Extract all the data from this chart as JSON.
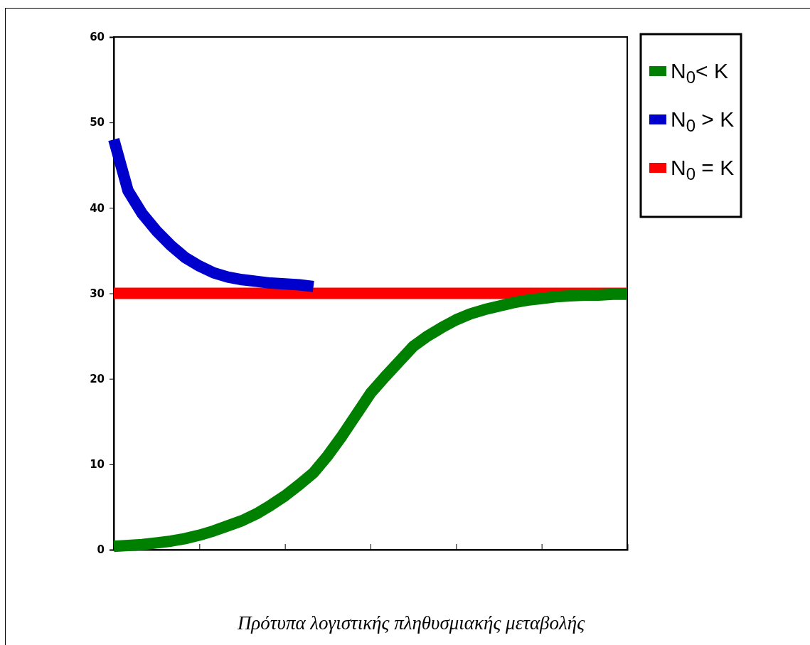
{
  "chart_data": {
    "type": "line",
    "categories": [
      null,
      null,
      null,
      null,
      null,
      null,
      null,
      null,
      null,
      null,
      null,
      null,
      null,
      null,
      null,
      null,
      null,
      null,
      null,
      null,
      null,
      null,
      null,
      null,
      null,
      null,
      null,
      null,
      null,
      null,
      null,
      null,
      null,
      null,
      null,
      null,
      null
    ],
    "series": [
      {
        "name": "N$_{0}$< K",
        "color": "#008000",
        "values": [
          0.4,
          0.5,
          0.6,
          0.8,
          1.0,
          1.3,
          1.7,
          2.2,
          2.8,
          3.4,
          4.2,
          5.2,
          6.3,
          7.6,
          9.0,
          11.0,
          13.3,
          15.8,
          18.3,
          20.2,
          22.0,
          23.8,
          25.0,
          26.0,
          26.9,
          27.6,
          28.1,
          28.5,
          28.9,
          29.2,
          29.4,
          29.6,
          29.7,
          29.8,
          29.8,
          29.9,
          29.9
        ]
      },
      {
        "name": "N$_{0}$ > K",
        "color": "#0000cc",
        "values": [
          48,
          42,
          39.3,
          37.3,
          35.6,
          34.2,
          33.2,
          32.4,
          31.9,
          31.6,
          31.4,
          31.2,
          31.1,
          31.0,
          30.8,
          null,
          null,
          null,
          null,
          null,
          null,
          null,
          null,
          null,
          null,
          null,
          null,
          null,
          null,
          null,
          null,
          null,
          null,
          null,
          null,
          null,
          null
        ]
      },
      {
        "name": "N$_{0}$ = K",
        "color": "#ff0000",
        "values": [
          30,
          30,
          30,
          30,
          30,
          30,
          30,
          30,
          30,
          30,
          30,
          30,
          30,
          30,
          30,
          30,
          30,
          30,
          30,
          30,
          30,
          30,
          30,
          30,
          30,
          30,
          30,
          30,
          30,
          30,
          30,
          30,
          30,
          30,
          30,
          30,
          30
        ]
      }
    ],
    "ylim": [
      0,
      60
    ],
    "yticks": [
      0,
      10,
      20,
      30,
      40,
      50,
      60
    ],
    "tick_labels": "y",
    "grid": false,
    "legend": "top right",
    "marker": "none",
    "line_style": "solid",
    "annotations": [
      "Πρότυπα λογιστικής πληθυσμιακής μεταβολής"
    ]
  }
}
